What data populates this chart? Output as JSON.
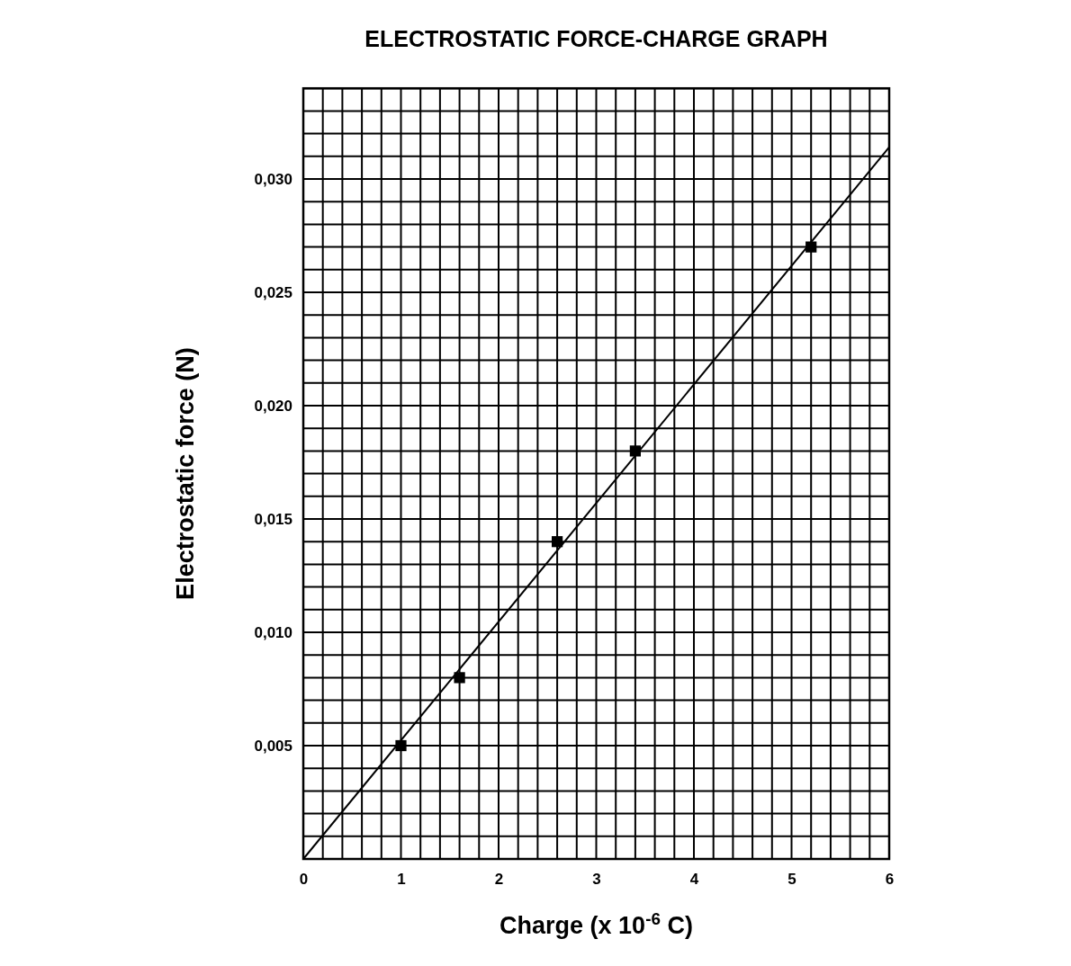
{
  "chart_data": {
    "type": "scatter",
    "title": "ELECTROSTATIC FORCE-CHARGE GRAPH",
    "xlabel": "Charge (x 10$^{-6}$ C)",
    "ylabel": "Electrostatic force (N)",
    "series": [
      {
        "type": "scatter",
        "color": "#000000",
        "marker": "square",
        "x": [
          1,
          1.6,
          2.6,
          3.4,
          5.2
        ],
        "values": [
          0.005,
          0.008,
          0.014,
          0.018,
          0.027
        ]
      },
      {
        "type": "line",
        "color": "#000000",
        "marker": "none",
        "line_style": "solid",
        "x": [
          0,
          6
        ],
        "values": [
          0,
          0.0314
        ]
      }
    ],
    "xlim": [
      0,
      6.0
    ],
    "ylim": [
      0,
      0.034
    ],
    "xticks": [
      0,
      {
        "value": 0.2,
        "label": null
      },
      {
        "value": 0.4,
        "label": null
      },
      {
        "value": 0.6,
        "label": null
      },
      {
        "value": 0.8,
        "label": null
      },
      1,
      {
        "value": 1.2,
        "label": null
      },
      {
        "value": 1.4,
        "label": null
      },
      {
        "value": 1.6,
        "label": null
      },
      {
        "value": 1.8,
        "label": null
      },
      2,
      {
        "value": 2.2,
        "label": null
      },
      {
        "value": 2.4,
        "label": null
      },
      {
        "value": 2.6,
        "label": null
      },
      {
        "value": 2.8,
        "label": null
      },
      3,
      {
        "value": 3.2,
        "label": null
      },
      {
        "value": 3.4,
        "label": null
      },
      {
        "value": 3.6,
        "label": null
      },
      {
        "value": 3.8,
        "label": null
      },
      4,
      {
        "value": 4.2,
        "label": null
      },
      {
        "value": 4.4,
        "label": null
      },
      {
        "value": 4.6,
        "label": null
      },
      {
        "value": 4.8,
        "label": null
      },
      5,
      {
        "value": 5.2,
        "label": null
      },
      {
        "value": 5.4,
        "label": null
      },
      {
        "value": 5.6,
        "label": null
      },
      {
        "value": 5.8,
        "label": null
      },
      6
    ],
    "yticks": [
      {
        "value": 0,
        "label": null
      },
      {
        "value": 0.001,
        "label": null
      },
      {
        "value": 0.002,
        "label": null
      },
      {
        "value": 0.003,
        "label": null
      },
      {
        "value": 0.004,
        "label": null
      },
      {
        "value": 0.005,
        "label": "0,005"
      },
      {
        "value": 0.006,
        "label": null
      },
      {
        "value": 0.007,
        "label": null
      },
      {
        "value": 0.008,
        "label": null
      },
      {
        "value": 0.009,
        "label": null
      },
      {
        "value": 0.01,
        "label": "0,010"
      },
      {
        "value": 0.011,
        "label": null
      },
      {
        "value": 0.012,
        "label": null
      },
      {
        "value": 0.013,
        "label": null
      },
      {
        "value": 0.014,
        "label": null
      },
      {
        "value": 0.015,
        "label": "0,015"
      },
      {
        "value": 0.016,
        "label": null
      },
      {
        "value": 0.017,
        "label": null
      },
      {
        "value": 0.018,
        "label": null
      },
      {
        "value": 0.019,
        "label": null
      },
      {
        "value": 0.02,
        "label": "0,020"
      },
      {
        "value": 0.021,
        "label": null
      },
      {
        "value": 0.022,
        "label": null
      },
      {
        "value": 0.023,
        "label": null
      },
      {
        "value": 0.024,
        "label": null
      },
      {
        "value": 0.025,
        "label": "0,025"
      },
      {
        "value": 0.026,
        "label": null
      },
      {
        "value": 0.027,
        "label": null
      },
      {
        "value": 0.028,
        "label": null
      },
      {
        "value": 0.029,
        "label": null
      },
      {
        "value": 0.03,
        "label": "0,030"
      },
      {
        "value": 0.031,
        "label": null
      },
      {
        "value": 0.032,
        "label": null
      },
      {
        "value": 0.033,
        "label": null
      },
      {
        "value": 0.034,
        "label": null
      }
    ],
    "grid": true
  }
}
